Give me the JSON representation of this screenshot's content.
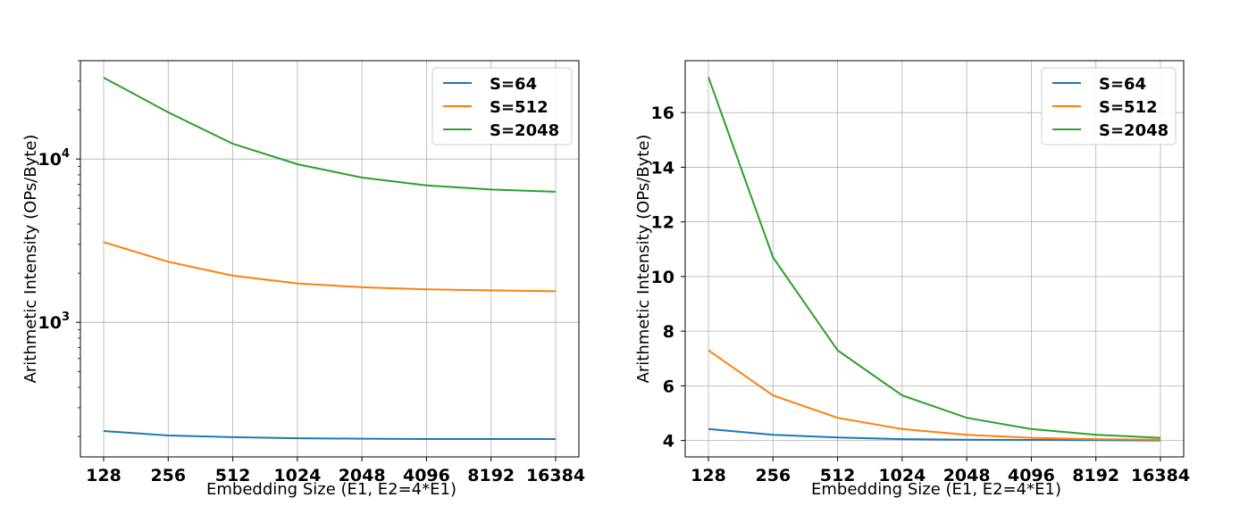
{
  "colors": {
    "S=64": "#1f77b4",
    "S=512": "#ff7f0e",
    "S=2048": "#2ca02c"
  },
  "chart_data": [
    {
      "type": "line",
      "xlabel": "Embedding Size (E1, E2=4*E1)",
      "ylabel": "Arithmetic Intensity (OPs/Byte)",
      "x_scale": "log2",
      "y_scale": "log10",
      "categories": [
        "128",
        "256",
        "512",
        "1024",
        "2048",
        "4096",
        "8192",
        "16384"
      ],
      "ylim": [
        150,
        40000
      ],
      "y_major_ticks": [
        {
          "value": 1000,
          "base": "10",
          "exp": "3"
        },
        {
          "value": 10000,
          "base": "10",
          "exp": "4"
        }
      ],
      "grid": true,
      "legend": "top-right",
      "series": [
        {
          "name": "S=64",
          "values": [
            216,
            203,
            198,
            195,
            194,
            193,
            193,
            193
          ]
        },
        {
          "name": "S=512",
          "values": [
            3100,
            2350,
            1930,
            1730,
            1640,
            1590,
            1570,
            1550
          ]
        },
        {
          "name": "S=2048",
          "values": [
            31500,
            19300,
            12400,
            9300,
            7700,
            6900,
            6500,
            6300
          ]
        }
      ]
    },
    {
      "type": "line",
      "xlabel": "Embedding Size (E1, E2=4*E1)",
      "ylabel": "Arithmetic Intensity (OPs/Byte)",
      "x_scale": "log2",
      "y_scale": "linear",
      "categories": [
        "128",
        "256",
        "512",
        "1024",
        "2048",
        "4096",
        "8192",
        "16384"
      ],
      "ylim": [
        3.4,
        17.9
      ],
      "yticks": [
        "4",
        "6",
        "8",
        "10",
        "12",
        "14",
        "16"
      ],
      "grid": true,
      "legend": "top-right",
      "series": [
        {
          "name": "S=64",
          "values": [
            4.42,
            4.21,
            4.11,
            4.05,
            4.03,
            4.02,
            4.01,
            4.0
          ]
        },
        {
          "name": "S=512",
          "values": [
            7.3,
            5.65,
            4.83,
            4.42,
            4.21,
            4.1,
            4.05,
            4.03
          ]
        },
        {
          "name": "S=2048",
          "values": [
            17.3,
            10.7,
            7.3,
            5.65,
            4.83,
            4.42,
            4.21,
            4.1
          ]
        }
      ]
    }
  ]
}
